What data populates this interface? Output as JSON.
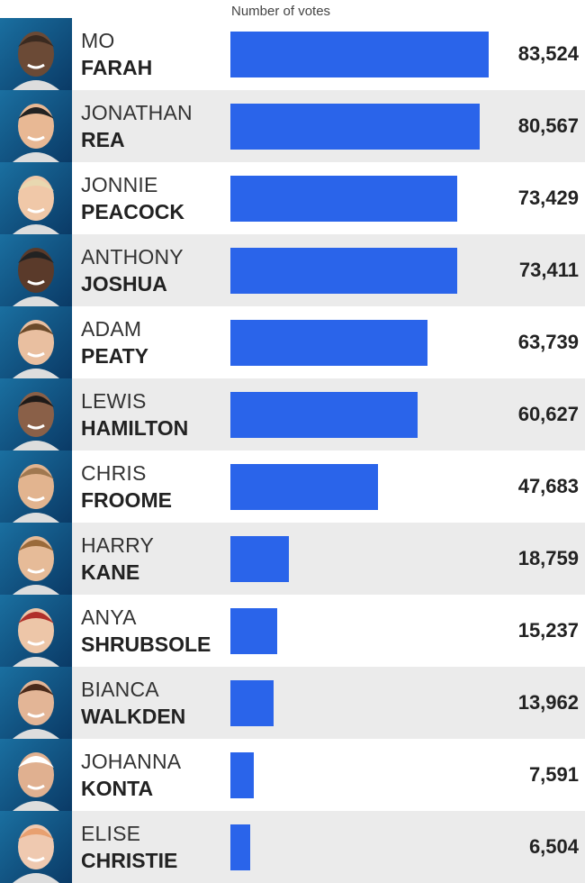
{
  "chart_data": {
    "type": "bar",
    "orientation": "horizontal",
    "xlabel": "Number of votes",
    "xlim": [
      0,
      83524
    ],
    "grid": false,
    "bar_color": "#2a64ea",
    "row_alt_color": "#ebebeb",
    "categories": [
      {
        "first": "MO",
        "last": "FARAH"
      },
      {
        "first": "JONATHAN",
        "last": "REA"
      },
      {
        "first": "JONNIE",
        "last": "PEACOCK"
      },
      {
        "first": "ANTHONY",
        "last": "JOSHUA"
      },
      {
        "first": "ADAM",
        "last": "PEATY"
      },
      {
        "first": "LEWIS",
        "last": "HAMILTON"
      },
      {
        "first": "CHRIS",
        "last": "FROOME"
      },
      {
        "first": "HARRY",
        "last": "KANE"
      },
      {
        "first": "ANYA",
        "last": "SHRUBSOLE"
      },
      {
        "first": "BIANCA",
        "last": "WALKDEN"
      },
      {
        "first": "JOHANNA",
        "last": "KONTA"
      },
      {
        "first": "ELISE",
        "last": "CHRISTIE"
      }
    ],
    "values": [
      83524,
      80567,
      73429,
      73411,
      63739,
      60627,
      47683,
      18759,
      15237,
      13962,
      7591,
      6504
    ],
    "value_labels": [
      "83,524",
      "80,567",
      "73,429",
      "73,411",
      "63,739",
      "60,627",
      "47,683",
      "18,759",
      "15,237",
      "13,962",
      "7,591",
      "6,504"
    ]
  }
}
